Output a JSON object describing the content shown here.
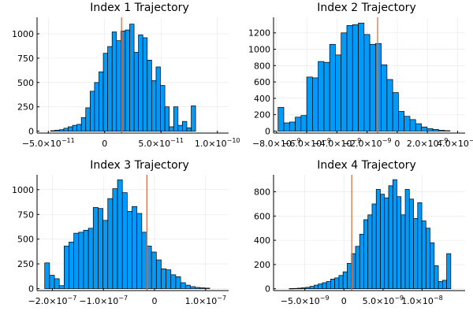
{
  "chart_data": [
    {
      "type": "bar",
      "title": "Index 1 Trajectory",
      "bin_start": -4.8e-11,
      "bin_width": 3.9e-12,
      "counts": [
        5,
        10,
        15,
        30,
        45,
        60,
        70,
        140,
        240,
        410,
        500,
        610,
        800,
        870,
        1020,
        930,
        1030,
        1040,
        1100,
        810,
        990,
        960,
        730,
        520,
        660,
        470,
        250,
        45,
        250,
        60,
        100,
        35,
        260
      ],
      "vline": 1.5e-11,
      "xlim": [
        -6e-11,
        1.1e-10
      ],
      "ylim": [
        -20,
        1170
      ],
      "xticks": [
        {
          "v": -5e-11,
          "m": "−5.0×10",
          "e": "−11"
        },
        {
          "v": 0,
          "m": "0",
          "e": ""
        },
        {
          "v": 5e-11,
          "m": "5.0×10",
          "e": "−11"
        },
        {
          "v": 1e-10,
          "m": "1.0×10",
          "e": "−10"
        }
      ],
      "yticks": [
        0,
        250,
        500,
        750,
        1000
      ]
    },
    {
      "type": "bar",
      "title": "Index 2 Trajectory",
      "bin_start": -7.9e-09,
      "bin_width": 3.8e-10,
      "counts": [
        290,
        100,
        110,
        170,
        190,
        660,
        650,
        850,
        840,
        1060,
        930,
        1200,
        1290,
        1300,
        1320,
        1180,
        1060,
        1070,
        810,
        630,
        470,
        240,
        180,
        140,
        90,
        50,
        30,
        20,
        10,
        5
      ],
      "vline": -1.3e-09,
      "xlim": [
        -8.2e-09,
        4.5e-09
      ],
      "ylim": [
        -25,
        1390
      ],
      "xticks": [
        {
          "v": -8e-09,
          "m": "−8.0×10",
          "e": "−9"
        },
        {
          "v": -6e-09,
          "m": "−6.0×10",
          "e": "−9"
        },
        {
          "v": -4e-09,
          "m": "−4.0×10",
          "e": "−9"
        },
        {
          "v": -2e-09,
          "m": "−2.0×10",
          "e": "−9"
        },
        {
          "v": 0,
          "m": "0",
          "e": ""
        },
        {
          "v": 2e-09,
          "m": "2.0×10",
          "e": "−9"
        },
        {
          "v": 4e-09,
          "m": "4.0×10",
          "e": "−9"
        }
      ],
      "yticks": [
        0,
        200,
        400,
        600,
        800,
        1000,
        1200
      ]
    },
    {
      "type": "bar",
      "title": "Index 3 Trajectory",
      "bin_start": -2.15e-07,
      "bin_width": 9.5e-09,
      "counts": [
        260,
        135,
        100,
        30,
        430,
        470,
        560,
        570,
        590,
        610,
        820,
        810,
        690,
        910,
        1010,
        1100,
        970,
        780,
        830,
        760,
        570,
        430,
        370,
        290,
        200,
        190,
        140,
        120,
        60,
        35,
        20,
        12,
        8,
        5
      ],
      "vline": -1.5e-08,
      "xlim": [
        -2.3e-07,
        1.45e-07
      ],
      "ylim": [
        -20,
        1150
      ],
      "xticks": [
        {
          "v": -2e-07,
          "m": "−2.0×10",
          "e": "−7"
        },
        {
          "v": -1e-07,
          "m": "−1.0×10",
          "e": "−7"
        },
        {
          "v": 0,
          "m": "0",
          "e": ""
        },
        {
          "v": 1e-07,
          "m": "1.0×10",
          "e": "−7"
        }
      ],
      "yticks": [
        0,
        250,
        500,
        750,
        1000
      ]
    },
    {
      "type": "bar",
      "title": "Index 4 Trajectory",
      "bin_start": -7e-09,
      "bin_width": 5.3e-10,
      "counts": [
        2,
        3,
        5,
        8,
        12,
        20,
        30,
        40,
        50,
        60,
        80,
        90,
        110,
        140,
        210,
        290,
        350,
        450,
        570,
        610,
        700,
        820,
        780,
        750,
        850,
        900,
        760,
        610,
        820,
        740,
        580,
        710,
        560,
        500,
        380,
        190,
        60,
        70,
        290
      ],
      "vline": 1e-09,
      "xlim": [
        -9e-09,
        1.55e-08
      ],
      "ylim": [
        -15,
        940
      ],
      "xticks": [
        {
          "v": -5e-09,
          "m": "−5.0×10",
          "e": "−9"
        },
        {
          "v": 0,
          "m": "0",
          "e": ""
        },
        {
          "v": 5e-09,
          "m": "5.0×10",
          "e": "−9"
        },
        {
          "v": 1e-08,
          "m": "1.0×10",
          "e": "−8"
        }
      ],
      "yticks": [
        0,
        200,
        400,
        600,
        800
      ]
    }
  ]
}
